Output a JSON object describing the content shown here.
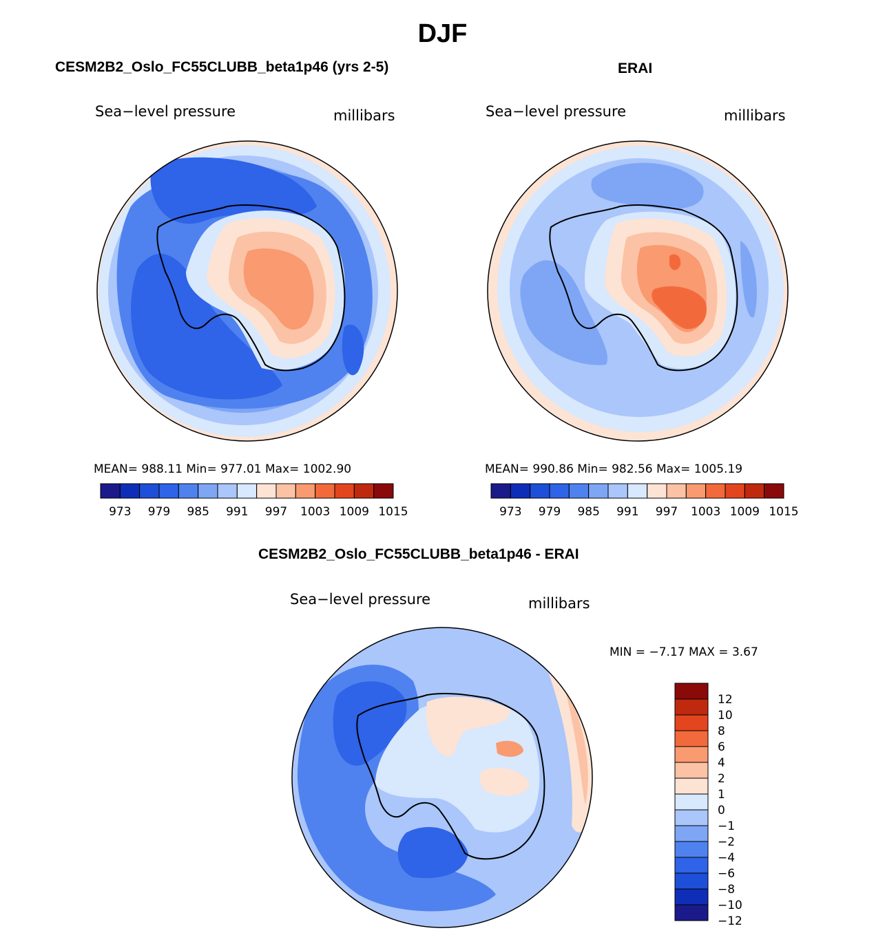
{
  "title": "DJF",
  "panels": [
    {
      "id": "model",
      "title": "CESM2B2_Oslo_FC55CLUBB_beta1p46 (yrs 2-5)",
      "variable": "Sea−level pressure",
      "units": "millibars",
      "stats": "MEAN=  988.11    Min=  977.01    Max=  1002.90"
    },
    {
      "id": "obs",
      "title": "ERAI",
      "variable": "Sea−level pressure",
      "units": "millibars",
      "stats": "MEAN=  990.86    Min=  982.56    Max=  1005.19"
    },
    {
      "id": "diff",
      "title": "CESM2B2_Oslo_FC55CLUBB_beta1p46 - ERAI",
      "variable": "Sea−level pressure",
      "units": "millibars",
      "stats": "MIN =   −7.17  MAX =     3.67"
    }
  ],
  "chart_data": [
    {
      "type": "heatmap",
      "projection": "south-polar-stereographic",
      "title": "CESM2B2_Oslo_FC55CLUBB_beta1p46 (yrs 2-5)",
      "variable": "Sea-level pressure",
      "units": "millibars",
      "mean": 988.11,
      "min": 977.01,
      "max": 1002.9,
      "levels": [
        973,
        976,
        979,
        982,
        985,
        988,
        991,
        994,
        997,
        1000,
        1003,
        1006,
        1009,
        1012,
        1015
      ],
      "colorbar_labels": [
        "973",
        "979",
        "985",
        "991",
        "997",
        "1003",
        "1009",
        "1015"
      ],
      "colors": [
        "#1a1a8a",
        "#0f2eb8",
        "#1e4fd8",
        "#2f63e8",
        "#4f82ef",
        "#7ea6f5",
        "#aac6fa",
        "#d8e8fd",
        "#fde3d4",
        "#fcc2a5",
        "#f99a70",
        "#f26a3c",
        "#e3451e",
        "#bf2a0f",
        "#8a0a0a"
      ]
    },
    {
      "type": "heatmap",
      "projection": "south-polar-stereographic",
      "title": "ERAI",
      "variable": "Sea-level pressure",
      "units": "millibars",
      "mean": 990.86,
      "min": 982.56,
      "max": 1005.19,
      "levels": [
        973,
        976,
        979,
        982,
        985,
        988,
        991,
        994,
        997,
        1000,
        1003,
        1006,
        1009,
        1012,
        1015
      ],
      "colorbar_labels": [
        "973",
        "979",
        "985",
        "991",
        "997",
        "1003",
        "1009",
        "1015"
      ],
      "colors": [
        "#1a1a8a",
        "#0f2eb8",
        "#1e4fd8",
        "#2f63e8",
        "#4f82ef",
        "#7ea6f5",
        "#aac6fa",
        "#d8e8fd",
        "#fde3d4",
        "#fcc2a5",
        "#f99a70",
        "#f26a3c",
        "#e3451e",
        "#bf2a0f",
        "#8a0a0a"
      ]
    },
    {
      "type": "heatmap",
      "projection": "south-polar-stereographic",
      "title": "CESM2B2_Oslo_FC55CLUBB_beta1p46 - ERAI",
      "variable": "Sea-level pressure",
      "units": "millibars",
      "min": -7.17,
      "max": 3.67,
      "levels": [
        -12,
        -10,
        -8,
        -6,
        -4,
        -2,
        -1,
        0,
        1,
        2,
        4,
        6,
        8,
        10,
        12
      ],
      "colorbar_labels": [
        "12",
        "10",
        "8",
        "6",
        "4",
        "2",
        "1",
        "0",
        "−1",
        "−2",
        "−4",
        "−6",
        "−8",
        "−10",
        "−12"
      ],
      "colors": [
        "#8a0a0a",
        "#bf2a0f",
        "#e3451e",
        "#f26a3c",
        "#f99a70",
        "#fcc2a5",
        "#fde3d4",
        "#d8e8fd",
        "#aac6fa",
        "#7ea6f5",
        "#4f82ef",
        "#2f63e8",
        "#1e4fd8",
        "#0f2eb8",
        "#1a1a8a"
      ]
    }
  ]
}
